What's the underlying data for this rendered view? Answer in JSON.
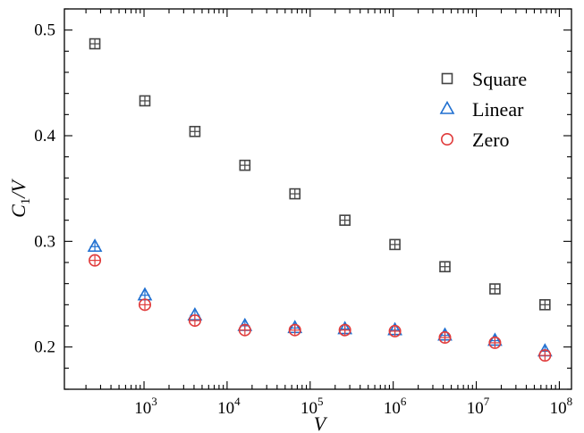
{
  "chart_data": {
    "type": "scatter",
    "xscale": "log",
    "xlim": [
      110,
      140000000
    ],
    "ylim": [
      0.16,
      0.52
    ],
    "xlabel": "V",
    "ylabel_main": "C",
    "ylabel_sub": "1",
    "ylabel_tail": "/V",
    "yticks": [
      0.2,
      0.3,
      0.4,
      0.5
    ],
    "ytick_labels": [
      "0.2",
      "0.3",
      "0.4",
      "0.5"
    ],
    "xticks": [
      {
        "base": "10",
        "exp": "3",
        "value": 1000
      },
      {
        "base": "10",
        "exp": "4",
        "value": 10000
      },
      {
        "base": "10",
        "exp": "5",
        "value": 100000
      },
      {
        "base": "10",
        "exp": "6",
        "value": 1000000
      },
      {
        "base": "10",
        "exp": "7",
        "value": 10000000
      },
      {
        "base": "10",
        "exp": "8",
        "value": 100000000
      }
    ],
    "x": [
      256,
      1024,
      4096,
      16384,
      65536,
      262144,
      1048576,
      4194304,
      16777216,
      67108864
    ],
    "series": [
      {
        "name": "Square",
        "marker": "square",
        "color": "#444444",
        "values": [
          0.487,
          0.433,
          0.404,
          0.372,
          0.345,
          0.32,
          0.297,
          0.276,
          0.255,
          0.24
        ]
      },
      {
        "name": "Linear",
        "marker": "triangle",
        "color": "#1f6fd0",
        "values": [
          0.295,
          0.249,
          0.23,
          0.22,
          0.218,
          0.217,
          0.216,
          0.211,
          0.206,
          0.196
        ]
      },
      {
        "name": "Zero",
        "marker": "circle",
        "color": "#e03a3a",
        "values": [
          0.282,
          0.24,
          0.225,
          0.216,
          0.216,
          0.216,
          0.215,
          0.209,
          0.204,
          0.192
        ]
      }
    ],
    "legend": "top-right",
    "grid": false
  }
}
